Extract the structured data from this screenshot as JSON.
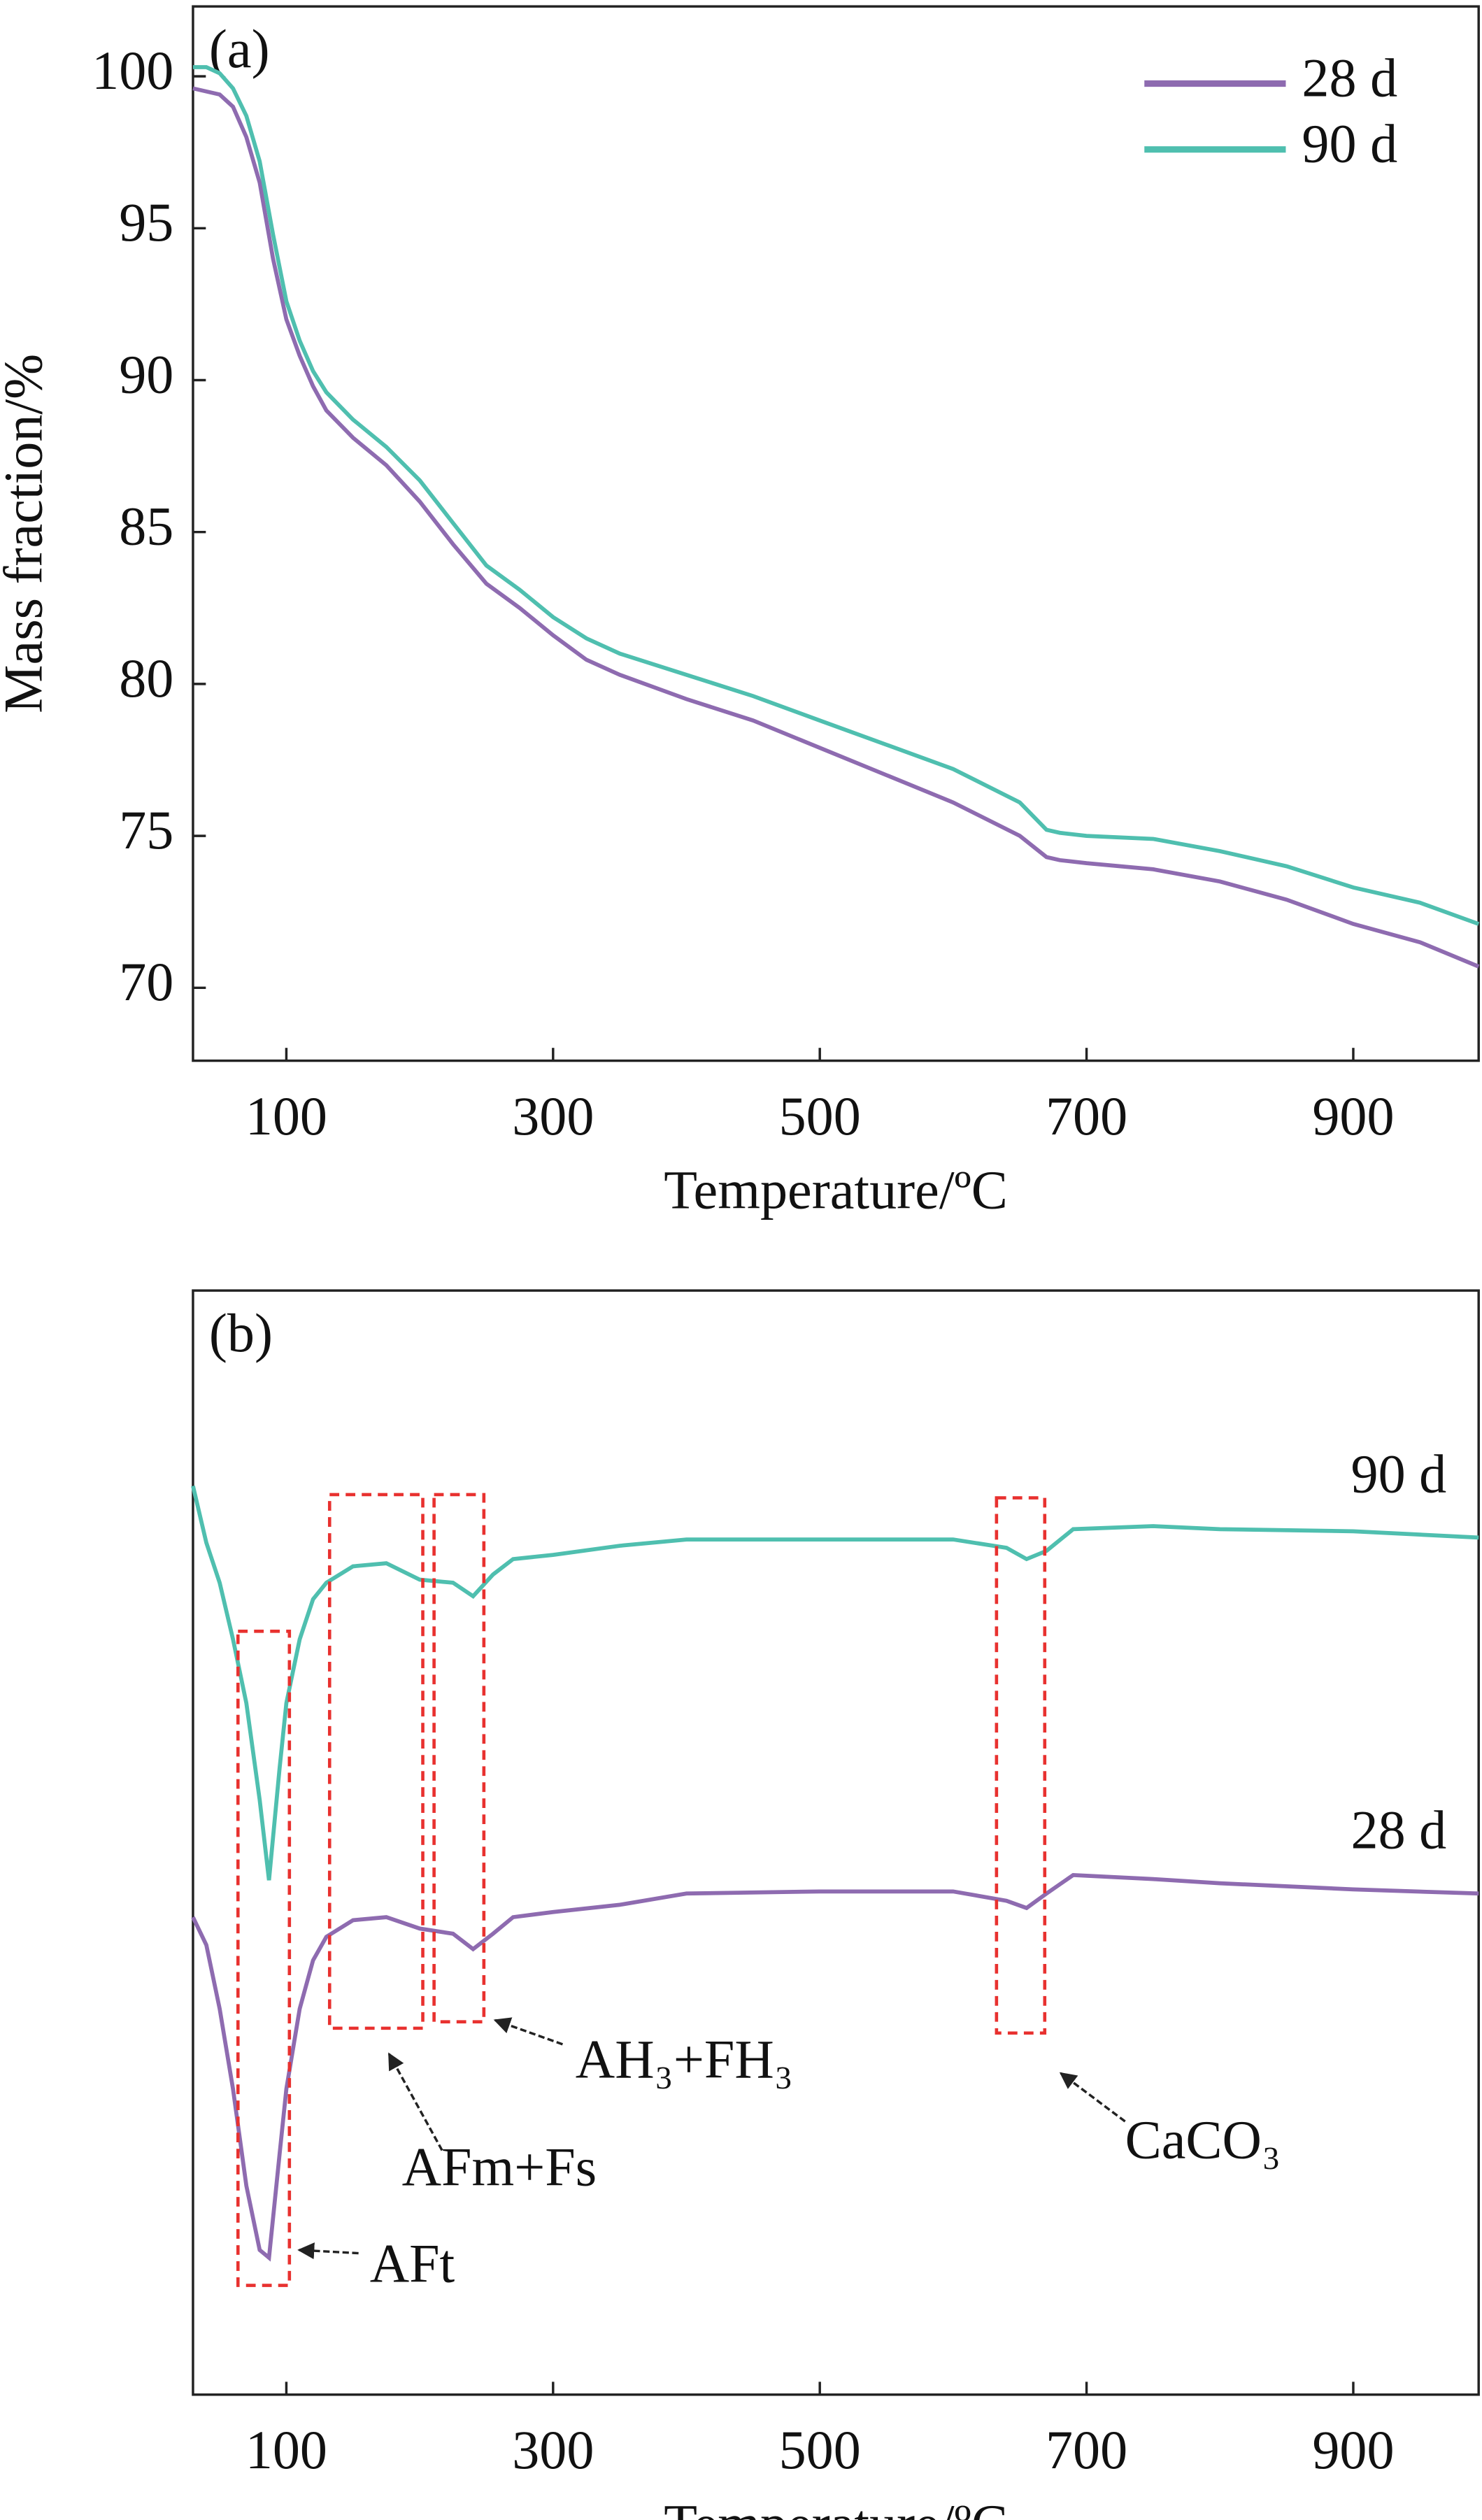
{
  "chart_data": [
    {
      "type": "line",
      "panel_label": "(a)",
      "x_label": "Temperature/ºC",
      "y_label": "Mass fraction/%",
      "x": [
        30,
        40,
        50,
        60,
        70,
        80,
        90,
        100,
        110,
        120,
        130,
        150,
        175,
        200,
        225,
        250,
        275,
        300,
        325,
        350,
        400,
        450,
        500,
        550,
        600,
        650,
        670,
        680,
        700,
        750,
        800,
        850,
        900,
        950,
        994
      ],
      "series": [
        {
          "name": "28 d",
          "color": "#8e6bb0",
          "values": [
            99.6,
            99.5,
            99.4,
            99.0,
            98.0,
            96.5,
            94.0,
            92.0,
            90.8,
            89.8,
            89.0,
            88.1,
            87.2,
            86.0,
            84.6,
            83.3,
            82.5,
            81.6,
            80.8,
            80.3,
            79.5,
            78.8,
            77.9,
            77.0,
            76.1,
            75.0,
            74.3,
            74.2,
            74.1,
            73.9,
            73.5,
            72.9,
            72.1,
            71.5,
            70.7
          ]
        },
        {
          "name": "90 d",
          "color": "#4fbfaf",
          "values": [
            100.3,
            100.3,
            100.1,
            99.6,
            98.7,
            97.2,
            94.8,
            92.6,
            91.3,
            90.3,
            89.6,
            88.7,
            87.8,
            86.7,
            85.3,
            83.9,
            83.1,
            82.2,
            81.5,
            81.0,
            80.3,
            79.6,
            78.8,
            78.0,
            77.2,
            76.1,
            75.2,
            75.1,
            75.0,
            74.9,
            74.5,
            74.0,
            73.3,
            72.8,
            72.1
          ]
        }
      ],
      "xlim": [
        30,
        994
      ],
      "ylim": [
        67.6,
        102.3
      ],
      "xticks": [
        100,
        300,
        500,
        700,
        900
      ],
      "yticks": [
        70,
        75,
        80,
        85,
        90,
        95,
        100
      ],
      "legend": "upper right"
    },
    {
      "type": "line",
      "panel_label": "(b)",
      "x_label": "Temperature/ºC",
      "x": [
        30,
        40,
        50,
        60,
        70,
        80,
        87,
        95,
        100,
        110,
        120,
        130,
        150,
        175,
        200,
        225,
        240,
        255,
        270,
        300,
        350,
        400,
        500,
        600,
        640,
        655,
        670,
        690,
        750,
        800,
        900,
        994
      ],
      "series": [
        {
          "name": "90 d",
          "color": "#4fbfaf",
          "values": [
            80.5,
            75,
            71.1,
            65.6,
            59.4,
            50,
            42.2,
            53.1,
            59.4,
            65.6,
            69.5,
            71.1,
            72.7,
            73.0,
            71.4,
            71.1,
            69.8,
            71.9,
            73.4,
            73.8,
            74.7,
            75.3,
            75.3,
            75.3,
            74.5,
            73.4,
            74.2,
            76.3,
            76.6,
            76.3,
            76.1,
            75.5
          ]
        },
        {
          "name": "28 d",
          "color": "#8e6bb0",
          "values": [
            38.6,
            35.9,
            29.7,
            21.9,
            12.5,
            6.25,
            5.5,
            15.6,
            21.9,
            29.7,
            34.4,
            36.7,
            38.3,
            38.6,
            37.5,
            37.0,
            35.5,
            37.0,
            38.6,
            39.1,
            39.8,
            40.9,
            41.1,
            41.1,
            40.2,
            39.5,
            40.9,
            42.7,
            42.3,
            41.9,
            41.3,
            40.9
          ]
        }
      ],
      "xlim": [
        30,
        994
      ],
      "ylim": [
        -7.8,
        99.5
      ],
      "xticks": [
        100,
        300,
        500,
        700,
        900
      ],
      "annotations": [
        {
          "text": "AFt"
        },
        {
          "text": "AFm+Fs"
        },
        {
          "text": "AH₃+FH₃"
        },
        {
          "text": "CaCO₃"
        }
      ]
    }
  ]
}
